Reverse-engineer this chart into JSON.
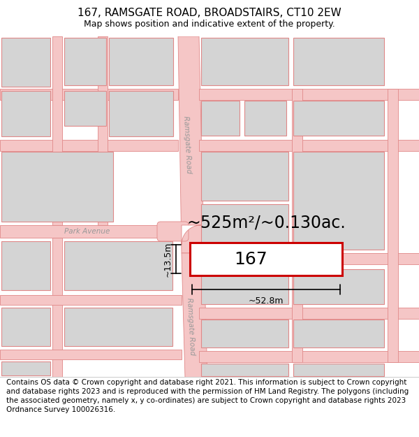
{
  "title": "167, RAMSGATE ROAD, BROADSTAIRS, CT10 2EW",
  "subtitle": "Map shows position and indicative extent of the property.",
  "footer": "Contains OS data © Crown copyright and database right 2021. This information is subject to Crown copyright and database rights 2023 and is reproduced with the permission of HM Land Registry. The polygons (including the associated geometry, namely x, y co-ordinates) are subject to Crown copyright and database rights 2023 Ordnance Survey 100026316.",
  "area_label": "~525m²/~0.130ac.",
  "width_label": "~52.8m",
  "height_label": "~13.5m",
  "property_number": "167",
  "bg_color": "#ffffff",
  "map_bg": "#ffffff",
  "road_color": "#f5c6c6",
  "road_stroke": "#e08888",
  "building_fill": "#d4d4d4",
  "building_stroke": "#e08888",
  "property_fill": "#ffffff",
  "property_stroke": "#cc0000",
  "road_label_color": "#999999",
  "dim_color": "#000000",
  "title_fontsize": 11,
  "subtitle_fontsize": 9,
  "footer_fontsize": 7.5,
  "area_fontsize": 17,
  "number_fontsize": 18,
  "dim_fontsize": 9,
  "map_sep_color": "#cccccc"
}
